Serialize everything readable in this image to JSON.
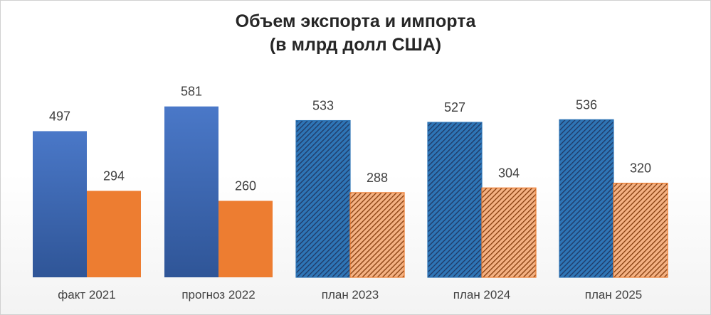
{
  "chart_data": {
    "type": "bar",
    "title": [
      "Объем экспорта и импорта",
      "(в млрд долл США)"
    ],
    "xlabel": "",
    "ylabel": "",
    "categories": [
      "факт 2021",
      "прогноз 2022",
      "план 2023",
      "план 2024",
      "план 2025"
    ],
    "series": [
      {
        "values": [
          497,
          581,
          533,
          527,
          536
        ],
        "color": "#4472c4",
        "pattern": [
          false,
          false,
          true,
          true,
          true
        ]
      },
      {
        "values": [
          294,
          260,
          288,
          304,
          320
        ],
        "color": "#ed7d31",
        "pattern": [
          false,
          false,
          true,
          true,
          true
        ]
      }
    ],
    "ylim": [
      0,
      600
    ],
    "grid": false,
    "legend": "none",
    "data_labels": true
  },
  "colors": {
    "series1": "#4472c4",
    "series1_dark": "#1f4e79",
    "series2": "#ed7d31",
    "series2_dark": "#843c0c",
    "label_text": "#404040"
  }
}
